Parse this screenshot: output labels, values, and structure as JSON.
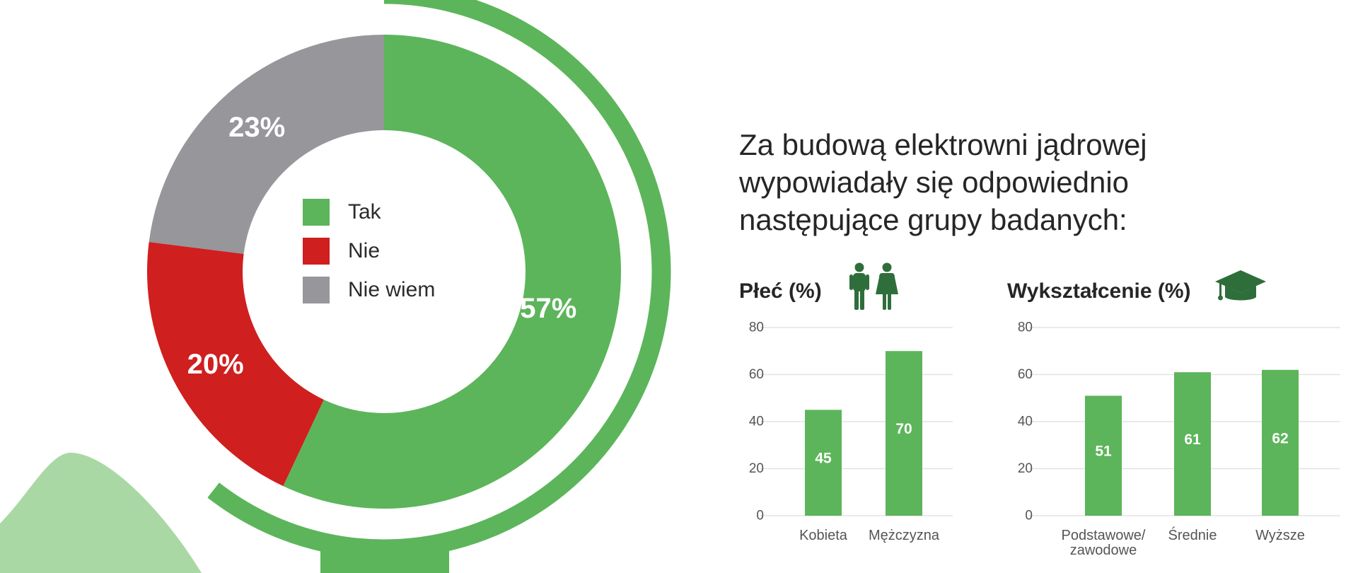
{
  "heading": {
    "lines": [
      "Za budową elektrowni jądrowej",
      "wypowiadały się odpowiednio",
      "następujące grupy badanych:"
    ]
  },
  "colors": {
    "green": "#5cb55a",
    "red": "#cf1f1f",
    "gray": "#96969b",
    "light_green": "#a9d8a4",
    "dark_green": "#2e6e3a",
    "grid": "#e3e3e3",
    "axis_text": "#555555"
  },
  "chart_data": [
    {
      "type": "pie",
      "labels": [
        "Tak",
        "Nie",
        "Nie wiem"
      ],
      "values": [
        57,
        20,
        23
      ],
      "value_labels": [
        "57%",
        "20%",
        "23%"
      ],
      "colors": [
        "#5cb55a",
        "#cf1f1f",
        "#96969b"
      ],
      "donut": true,
      "legend": "center"
    },
    {
      "type": "bar",
      "title": "Płeć (%)",
      "icon": "people-icon",
      "categories": [
        "Kobieta",
        "Mężczyzna"
      ],
      "values": [
        45,
        70
      ],
      "ylim": [
        0,
        80
      ],
      "yticks": [
        "0",
        "20",
        "40",
        "60",
        "80"
      ],
      "grid": true
    },
    {
      "type": "bar",
      "title": "Wykształcenie (%)",
      "icon": "graduation-cap-icon",
      "categories": [
        [
          "Podstawowe/",
          "zawodowe"
        ],
        [
          "Średnie"
        ],
        [
          "Wyższe"
        ]
      ],
      "values": [
        51,
        61,
        62
      ],
      "ylim": [
        0,
        80
      ],
      "yticks": [
        "0",
        "20",
        "40",
        "60",
        "80"
      ],
      "grid": true
    }
  ]
}
